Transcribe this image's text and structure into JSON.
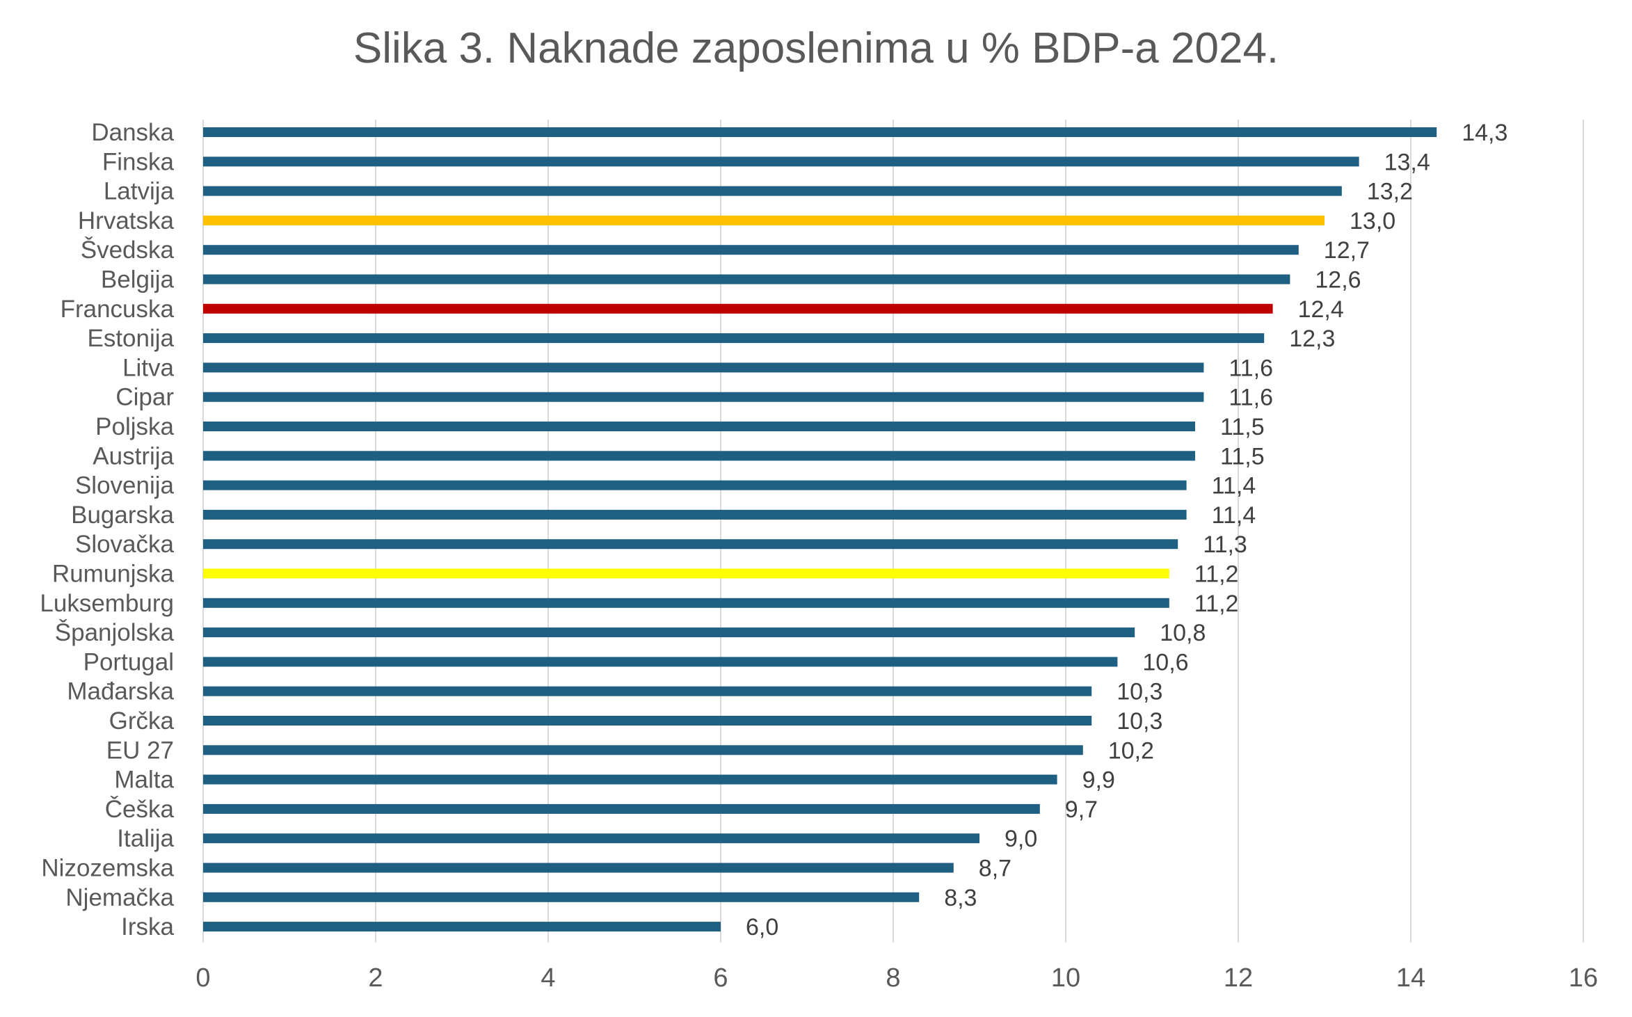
{
  "chart_data": {
    "type": "bar",
    "orientation": "horizontal",
    "title": "Slika 3. Naknade zaposlenima u % BDP-a 2024.",
    "xlabel": "",
    "ylabel": "",
    "xlim": [
      0,
      16
    ],
    "x_ticks": [
      0,
      2,
      4,
      6,
      8,
      10,
      12,
      14,
      16
    ],
    "x_tick_labels": [
      "0",
      "2",
      "4",
      "6",
      "8",
      "10",
      "12",
      "14",
      "16"
    ],
    "grid": "vertical",
    "legend": "none",
    "default_color": "#1F5F82",
    "categories": [
      "Danska",
      "Finska",
      "Latvija",
      "Hrvatska",
      "Švedska",
      "Belgija",
      "Francuska",
      "Estonija",
      "Litva",
      "Cipar",
      "Poljska",
      "Austrija",
      "Slovenija",
      "Bugarska",
      "Slovačka",
      "Rumunjska",
      "Luksemburg",
      "Španjolska",
      "Portugal",
      "Mađarska",
      "Grčka",
      "EU 27",
      "Malta",
      "Češka",
      "Italija",
      "Nizozemska",
      "Njemačka",
      "Irska"
    ],
    "values": [
      14.3,
      13.4,
      13.2,
      13.0,
      12.7,
      12.6,
      12.4,
      12.3,
      11.6,
      11.6,
      11.5,
      11.5,
      11.4,
      11.4,
      11.3,
      11.2,
      11.2,
      10.8,
      10.6,
      10.3,
      10.3,
      10.2,
      9.9,
      9.7,
      9.0,
      8.7,
      8.3,
      6.0
    ],
    "data_labels": [
      "14,3",
      "13,4",
      "13,2",
      "13,0",
      "12,7",
      "12,6",
      "12,4",
      "12,3",
      "11,6",
      "11,6",
      "11,5",
      "11,5",
      "11,4",
      "11,4",
      "11,3",
      "11,2",
      "11,2",
      "10,8",
      "10,6",
      "10,3",
      "10,3",
      "10,2",
      "9,9",
      "9,7",
      "9,0",
      "8,7",
      "8,3",
      "6,0"
    ],
    "highlight_colors": {
      "Hrvatska": "#FFC000",
      "Francuska": "#C00000",
      "Rumunjska": "#FFFF00"
    }
  }
}
